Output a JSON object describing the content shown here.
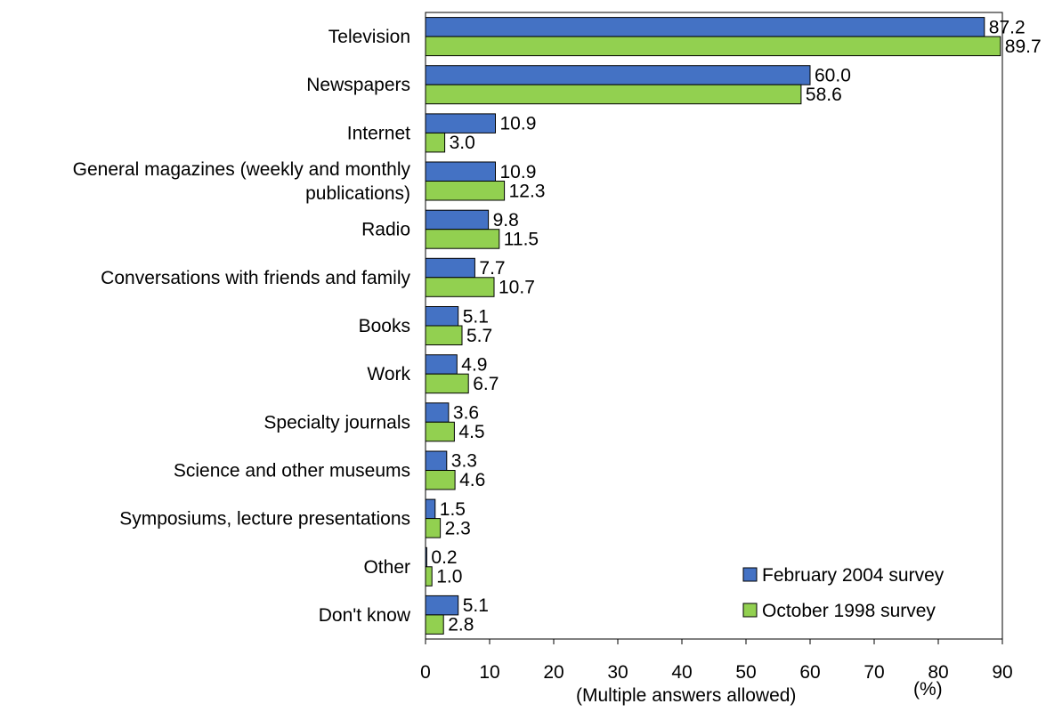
{
  "chart_data": {
    "type": "bar",
    "orientation": "horizontal",
    "categories": [
      "Television",
      "Newspapers",
      "Internet",
      "General magazines (weekly and monthly publications)",
      "Radio",
      "Conversations with friends and family",
      "Books",
      "Work",
      "Specialty journals",
      "Science and other museums",
      "Symposiums, lecture presentations",
      "Other",
      "Don't know"
    ],
    "category_lines": [
      [
        "Television"
      ],
      [
        "Newspapers"
      ],
      [
        "Internet"
      ],
      [
        "General magazines (weekly and monthly",
        "publications)"
      ],
      [
        "Radio"
      ],
      [
        "Conversations with friends and family"
      ],
      [
        "Books"
      ],
      [
        "Work"
      ],
      [
        "Specialty journals"
      ],
      [
        "Science and other museums"
      ],
      [
        "Symposiums, lecture presentations"
      ],
      [
        "Other"
      ],
      [
        "Don't know"
      ]
    ],
    "series": [
      {
        "name": "February 2004 survey",
        "color": "#4472c4",
        "values": [
          87.2,
          60.0,
          10.9,
          10.9,
          9.8,
          7.7,
          5.1,
          4.9,
          3.6,
          3.3,
          1.5,
          0.2,
          5.1
        ]
      },
      {
        "name": "October 1998 survey",
        "color": "#92d050",
        "values": [
          89.7,
          58.6,
          3.0,
          12.3,
          11.5,
          10.7,
          5.7,
          6.7,
          4.5,
          4.6,
          2.3,
          1.0,
          2.8
        ]
      }
    ],
    "xlim": [
      0,
      90
    ],
    "xticks": [
      0,
      10,
      20,
      30,
      40,
      50,
      60,
      70,
      80,
      90
    ],
    "xlabel": "(Multiple answers allowed)",
    "unit_label": "(%)",
    "grid": false,
    "legend_position": "bottom-right"
  }
}
